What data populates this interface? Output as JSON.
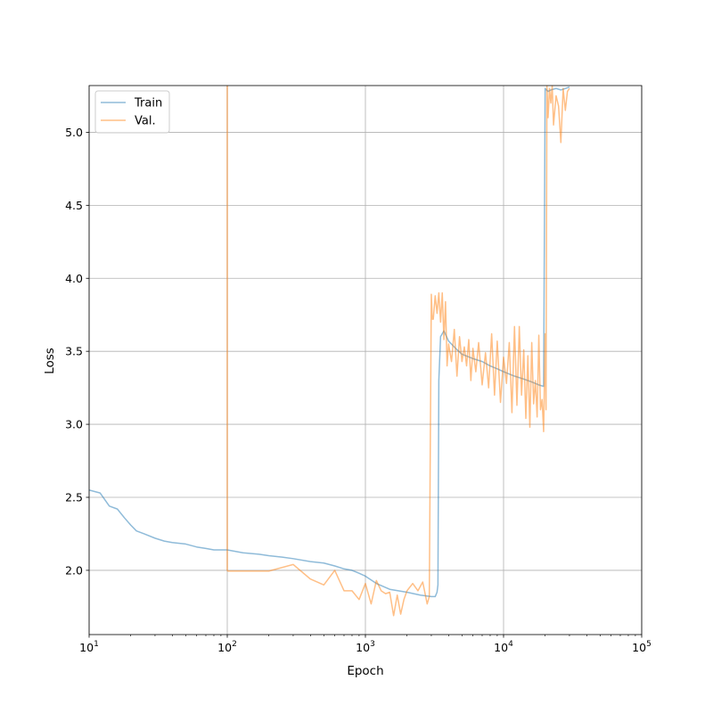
{
  "chart_data": {
    "type": "line",
    "title": "",
    "xlabel": "Epoch",
    "ylabel": "Loss",
    "xscale": "log",
    "xlim": [
      10,
      100000
    ],
    "ylim": [
      1.56,
      5.32
    ],
    "grid": true,
    "legend_position": "top-left",
    "x_ticks": [
      {
        "value": 10,
        "base": "10",
        "exp": "1"
      },
      {
        "value": 100,
        "base": "10",
        "exp": "2"
      },
      {
        "value": 1000,
        "base": "10",
        "exp": "3"
      },
      {
        "value": 10000,
        "base": "10",
        "exp": "4"
      },
      {
        "value": 100000,
        "base": "10",
        "exp": "5"
      }
    ],
    "y_ticks": [
      {
        "value": 2.0,
        "label": "2.0"
      },
      {
        "value": 2.5,
        "label": "2.5"
      },
      {
        "value": 3.0,
        "label": "3.0"
      },
      {
        "value": 3.5,
        "label": "3.5"
      },
      {
        "value": 4.0,
        "label": "4.0"
      },
      {
        "value": 4.5,
        "label": "4.5"
      },
      {
        "value": 5.0,
        "label": "5.0"
      }
    ],
    "series": [
      {
        "name": "Train",
        "color": "#1f77b4",
        "x": [
          10,
          12,
          14,
          16,
          18,
          20,
          22,
          25,
          30,
          35,
          40,
          50,
          60,
          70,
          80,
          90,
          100,
          130,
          170,
          200,
          250,
          300,
          400,
          500,
          600,
          700,
          800,
          900,
          1000,
          1200,
          1500,
          2000,
          2500,
          3000,
          3200,
          3300,
          3350,
          3400,
          3500,
          3700,
          4000,
          4500,
          5000,
          6000,
          7000,
          8000,
          9000,
          10000,
          12000,
          14000,
          16000,
          18000,
          19500,
          20000,
          20500,
          21000,
          22000,
          24000,
          26000,
          28000,
          30000
        ],
        "y": [
          2.55,
          2.53,
          2.44,
          2.42,
          2.36,
          2.31,
          2.27,
          2.25,
          2.22,
          2.2,
          2.19,
          2.18,
          2.16,
          2.15,
          2.14,
          2.14,
          2.14,
          2.12,
          2.11,
          2.1,
          2.09,
          2.08,
          2.06,
          2.05,
          2.03,
          2.01,
          2.0,
          1.98,
          1.96,
          1.91,
          1.87,
          1.85,
          1.83,
          1.82,
          1.82,
          1.85,
          1.9,
          3.3,
          3.6,
          3.64,
          3.57,
          3.52,
          3.48,
          3.45,
          3.43,
          3.4,
          3.38,
          3.36,
          3.33,
          3.31,
          3.29,
          3.27,
          3.26,
          5.3,
          5.29,
          5.28,
          5.29,
          5.3,
          5.29,
          5.3,
          5.31
        ]
      },
      {
        "name": "Val.",
        "color": "#ff7f0e",
        "x": [
          100,
          100,
          101,
          150,
          200,
          300,
          400,
          500,
          600,
          700,
          800,
          900,
          1000,
          1100,
          1200,
          1300,
          1400,
          1500,
          1600,
          1700,
          1800,
          1900,
          2000,
          2200,
          2400,
          2600,
          2800,
          2900,
          3000,
          3050,
          3100,
          3200,
          3300,
          3400,
          3500,
          3600,
          3700,
          3800,
          3900,
          4000,
          4200,
          4400,
          4600,
          4800,
          5000,
          5200,
          5400,
          5600,
          5800,
          6000,
          6300,
          6600,
          7000,
          7400,
          7800,
          8200,
          8600,
          9000,
          9500,
          10000,
          10500,
          11000,
          11500,
          12000,
          12500,
          13000,
          13500,
          14000,
          14500,
          15000,
          15500,
          16000,
          16500,
          17000,
          17500,
          18000,
          18500,
          19000,
          19500,
          20000,
          20300,
          20600,
          21000,
          21500,
          22000,
          22500,
          23000,
          24000,
          25000,
          26000,
          27000,
          28000,
          29000,
          30000
        ],
        "y": [
          5.32,
          2.0,
          1.995,
          1.995,
          1.995,
          2.04,
          1.94,
          1.9,
          2.0,
          1.86,
          1.86,
          1.8,
          1.91,
          1.77,
          1.93,
          1.86,
          1.84,
          1.85,
          1.69,
          1.83,
          1.7,
          1.8,
          1.86,
          1.91,
          1.86,
          1.92,
          1.77,
          1.82,
          3.89,
          3.72,
          3.72,
          3.88,
          3.76,
          3.9,
          3.7,
          3.9,
          3.58,
          3.84,
          3.4,
          3.55,
          3.43,
          3.65,
          3.33,
          3.6,
          3.43,
          3.53,
          3.4,
          3.58,
          3.3,
          3.52,
          3.36,
          3.56,
          3.27,
          3.49,
          3.25,
          3.62,
          3.2,
          3.57,
          3.15,
          3.46,
          3.28,
          3.56,
          3.08,
          3.67,
          3.13,
          3.67,
          3.2,
          3.51,
          3.04,
          3.47,
          2.98,
          3.56,
          3.14,
          3.3,
          3.05,
          3.61,
          3.1,
          3.17,
          2.95,
          3.62,
          3.1,
          5.32,
          5.1,
          5.3,
          5.2,
          5.32,
          5.05,
          5.25,
          5.18,
          4.93,
          5.3,
          5.15,
          5.28,
          5.3
        ]
      }
    ]
  }
}
